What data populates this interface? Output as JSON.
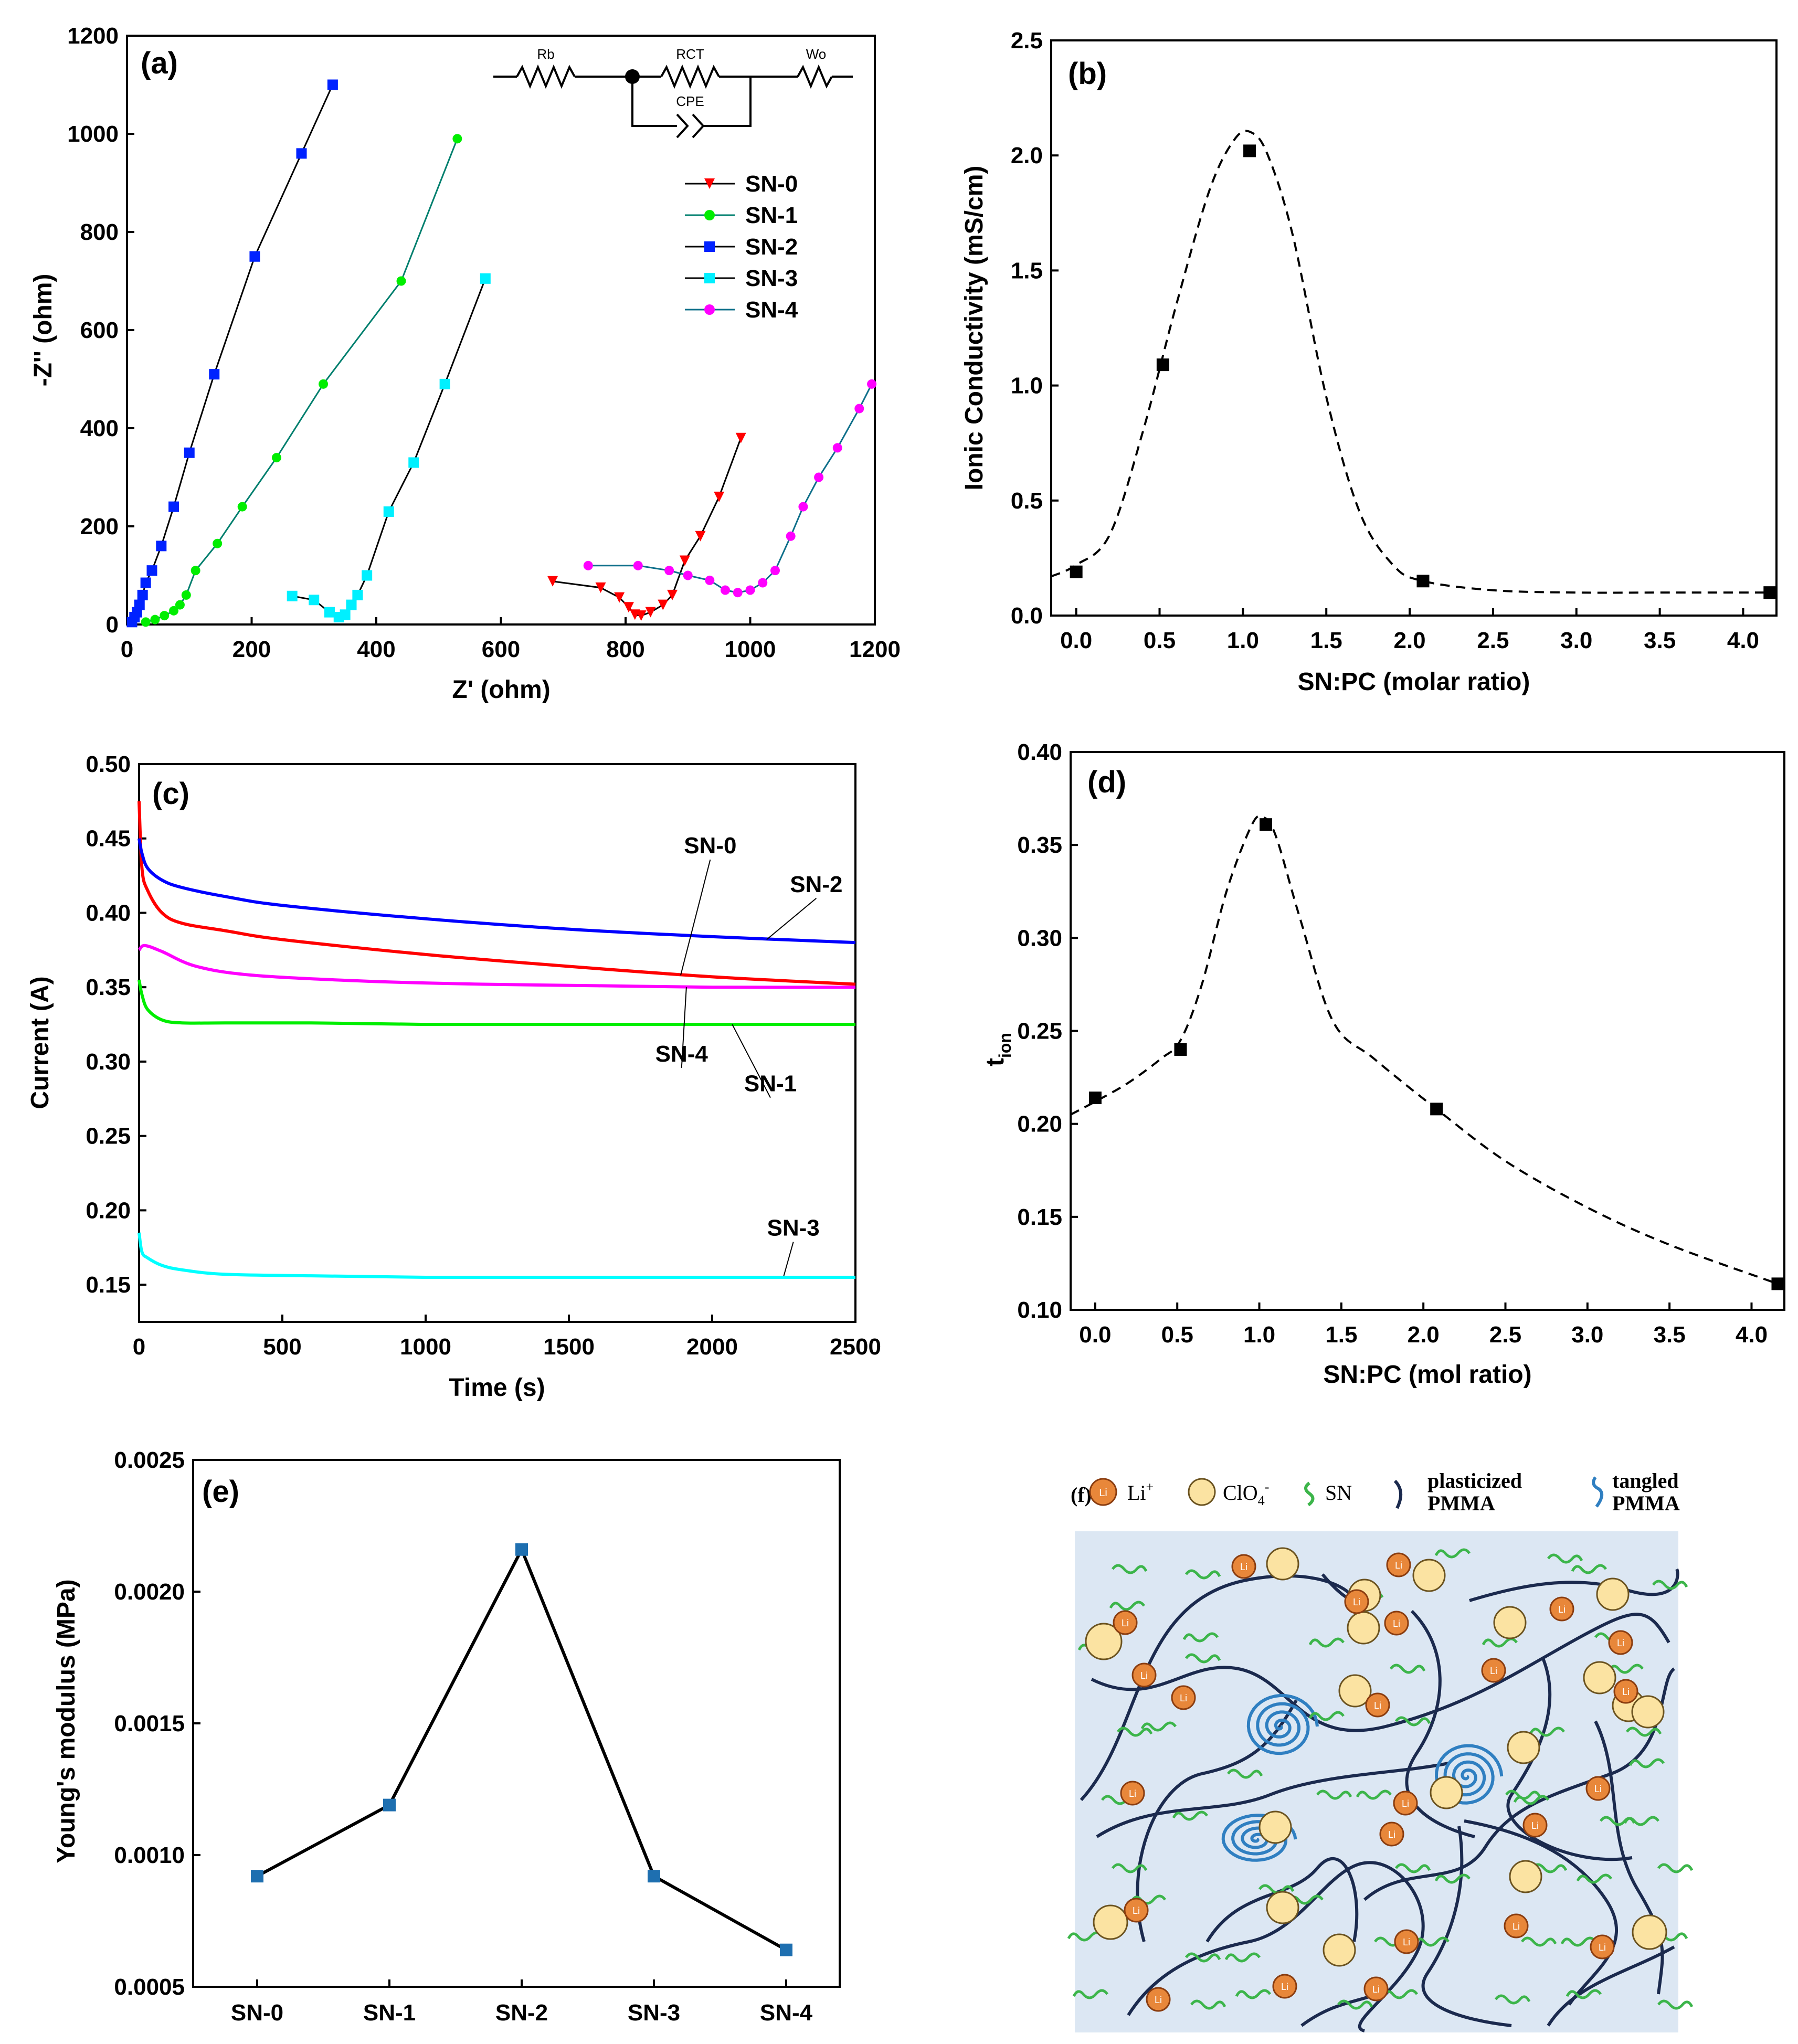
{
  "chart_data": [
    {
      "id": "a",
      "type": "scatter",
      "panel_label": "(a)",
      "xlabel": "Z' (ohm)",
      "ylabel": "-Z'' (ohm)",
      "xlim": [
        0,
        1200
      ],
      "ylim": [
        0,
        1200
      ],
      "xticks": [
        "0",
        "200",
        "400",
        "600",
        "800",
        "1000",
        "1200"
      ],
      "yticks": [
        "0",
        "200",
        "400",
        "600",
        "800",
        "1000",
        "1200"
      ],
      "circuit_labels": {
        "rb": "Rb",
        "rct": "RCT",
        "wo": "Wo",
        "cpe": "CPE"
      },
      "series": [
        {
          "name": "SN-0",
          "color": "#ff0000",
          "marker": "triangle-down",
          "x": [
            683,
            760,
            790,
            805,
            815,
            825,
            840,
            860,
            875,
            895,
            920,
            950,
            985
          ],
          "y": [
            88,
            75,
            55,
            35,
            20,
            18,
            25,
            40,
            60,
            130,
            180,
            260,
            380
          ]
        },
        {
          "name": "SN-1",
          "color": "#00ee00",
          "line": "#007f6e",
          "marker": "circle",
          "x": [
            30,
            45,
            60,
            75,
            85,
            95,
            110,
            145,
            185,
            240,
            315,
            440,
            530
          ],
          "y": [
            5,
            10,
            18,
            28,
            40,
            60,
            110,
            165,
            240,
            340,
            490,
            700,
            990
          ]
        },
        {
          "name": "SN-2",
          "color": "#0022ff",
          "line": "#000000",
          "marker": "square",
          "x": [
            8,
            12,
            16,
            20,
            25,
            30,
            40,
            55,
            75,
            100,
            140,
            205,
            280,
            330
          ],
          "y": [
            5,
            15,
            25,
            40,
            60,
            85,
            110,
            160,
            240,
            350,
            510,
            750,
            960,
            1100
          ]
        },
        {
          "name": "SN-3",
          "color": "#00f0ff",
          "line": "#000000",
          "marker": "square",
          "x": [
            265,
            300,
            325,
            340,
            350,
            360,
            370,
            385,
            420,
            460,
            510,
            575
          ],
          "y": [
            58,
            50,
            25,
            15,
            20,
            40,
            60,
            100,
            230,
            330,
            490,
            705
          ]
        },
        {
          "name": "SN-4",
          "color": "#ff00ff",
          "line": "#0e6f8a",
          "marker": "circle",
          "x": [
            740,
            820,
            870,
            900,
            935,
            960,
            980,
            1000,
            1020,
            1040,
            1065,
            1085,
            1110,
            1140,
            1175,
            1195
          ],
          "y": [
            120,
            120,
            110,
            100,
            90,
            70,
            65,
            70,
            85,
            110,
            180,
            240,
            300,
            360,
            440,
            490
          ]
        }
      ]
    },
    {
      "id": "b",
      "type": "scatter",
      "panel_label": "(b)",
      "xlabel": "SN:PC (molar ratio)",
      "ylabel": "Ionic Conductivity (mS/cm)",
      "xlim": [
        -0.15,
        4.2
      ],
      "ylim": [
        0,
        2.5
      ],
      "xticks": [
        "0.0",
        "0.5",
        "1.0",
        "1.5",
        "2.0",
        "2.5",
        "3.0",
        "3.5",
        "4.0"
      ],
      "yticks": [
        "0.0",
        "0.5",
        "1.0",
        "1.5",
        "2.0",
        "2.5"
      ],
      "points": {
        "x": [
          0.0,
          0.52,
          1.04,
          2.08,
          4.16
        ],
        "y": [
          0.19,
          1.09,
          2.02,
          0.15,
          0.1
        ]
      },
      "fit": {
        "x": [
          -0.15,
          0.0,
          0.2,
          0.4,
          0.6,
          0.8,
          0.95,
          1.05,
          1.15,
          1.3,
          1.5,
          1.7,
          1.9,
          2.08,
          2.5,
          3.0,
          3.5,
          4.16
        ],
        "y": [
          0.17,
          0.22,
          0.35,
          0.8,
          1.35,
          1.85,
          2.07,
          2.1,
          2.0,
          1.65,
          0.95,
          0.45,
          0.22,
          0.15,
          0.11,
          0.1,
          0.1,
          0.1
        ]
      }
    },
    {
      "id": "c",
      "type": "line",
      "panel_label": "(c)",
      "xlabel": "Time (s)",
      "ylabel": "Current (A)",
      "xlim": [
        0,
        2500
      ],
      "ylim": [
        0.125,
        0.5
      ],
      "xticks": [
        "0",
        "500",
        "1000",
        "1500",
        "2000",
        "2500"
      ],
      "yticks": [
        "0.15",
        "0.20",
        "0.25",
        "0.30",
        "0.35",
        "0.40",
        "0.45",
        "0.50"
      ],
      "series": [
        {
          "name": "SN-0",
          "color": "#ff0000",
          "x": [
            0,
            10,
            30,
            80,
            150,
            300,
            500,
            1000,
            1500,
            2000,
            2500
          ],
          "y": [
            0.475,
            0.43,
            0.415,
            0.4,
            0.393,
            0.388,
            0.382,
            0.372,
            0.364,
            0.357,
            0.352
          ]
        },
        {
          "name": "SN-2",
          "color": "#0000ff",
          "x": [
            0,
            10,
            30,
            80,
            150,
            300,
            500,
            1000,
            1500,
            2000,
            2500
          ],
          "y": [
            0.45,
            0.44,
            0.43,
            0.422,
            0.417,
            0.411,
            0.405,
            0.396,
            0.389,
            0.384,
            0.38
          ]
        },
        {
          "name": "SN-4",
          "color": "#ff00ff",
          "x": [
            0,
            20,
            80,
            200,
            400,
            800,
            1200,
            1600,
            2000,
            2500
          ],
          "y": [
            0.375,
            0.378,
            0.374,
            0.364,
            0.358,
            0.354,
            0.352,
            0.351,
            0.35,
            0.35
          ]
        },
        {
          "name": "SN-1",
          "color": "#00ee00",
          "x": [
            0,
            10,
            30,
            80,
            150,
            300,
            600,
            1000,
            1500,
            2000,
            2500
          ],
          "y": [
            0.355,
            0.345,
            0.335,
            0.328,
            0.326,
            0.326,
            0.326,
            0.325,
            0.325,
            0.325,
            0.325
          ]
        },
        {
          "name": "SN-3",
          "color": "#00ffff",
          "x": [
            0,
            10,
            30,
            80,
            150,
            300,
            600,
            1000,
            1500,
            2000,
            2500
          ],
          "y": [
            0.185,
            0.172,
            0.168,
            0.163,
            0.16,
            0.157,
            0.156,
            0.155,
            0.155,
            0.155,
            0.155
          ]
        }
      ],
      "annotations": [
        {
          "text": "SN-0",
          "label_x": 1920,
          "label_y": 0.44,
          "to_x": 1890,
          "to_y": 0.358
        },
        {
          "text": "SN-2",
          "label_x": 2290,
          "label_y": 0.414,
          "to_x": 2190,
          "to_y": 0.382
        },
        {
          "text": "SN-4",
          "label_x": 1820,
          "label_y": 0.3,
          "to_x": 1910,
          "to_y": 0.35
        },
        {
          "text": "SN-1",
          "label_x": 2130,
          "label_y": 0.28,
          "to_x": 2070,
          "to_y": 0.325
        },
        {
          "text": "SN-3",
          "label_x": 2210,
          "label_y": 0.183,
          "to_x": 2250,
          "to_y": 0.156
        }
      ]
    },
    {
      "id": "d",
      "type": "scatter",
      "panel_label": "(d)",
      "xlabel": "SN:PC (mol ratio)",
      "ylabel": "t",
      "ylabel_sub": "ion",
      "xlim": [
        -0.15,
        4.2
      ],
      "ylim": [
        0.1,
        0.4
      ],
      "xticks": [
        "0.0",
        "0.5",
        "1.0",
        "1.5",
        "2.0",
        "2.5",
        "3.0",
        "3.5",
        "4.0"
      ],
      "yticks": [
        "0.10",
        "0.15",
        "0.20",
        "0.25",
        "0.30",
        "0.35",
        "0.40"
      ],
      "points": {
        "x": [
          0.0,
          0.52,
          1.04,
          2.08,
          4.16
        ],
        "y": [
          0.214,
          0.24,
          0.361,
          0.208,
          0.114
        ]
      },
      "fit": {
        "x": [
          -0.15,
          0.0,
          0.2,
          0.4,
          0.52,
          0.65,
          0.8,
          0.95,
          1.02,
          1.1,
          1.25,
          1.45,
          1.7,
          2.08,
          2.5,
          3.0,
          3.5,
          4.16
        ],
        "y": [
          0.205,
          0.212,
          0.222,
          0.235,
          0.245,
          0.275,
          0.325,
          0.36,
          0.365,
          0.355,
          0.31,
          0.255,
          0.235,
          0.208,
          0.18,
          0.155,
          0.135,
          0.114
        ]
      }
    },
    {
      "id": "e",
      "type": "line",
      "panel_label": "(e)",
      "ylabel": "Young's modulus (MPa)",
      "categories": [
        "SN-0",
        "SN-1",
        "SN-2",
        "SN-3",
        "SN-4"
      ],
      "values": [
        0.00092,
        0.00119,
        0.00216,
        0.00092,
        0.00064
      ],
      "ylim": [
        0.0005,
        0.0025
      ],
      "yticks": [
        "0.0005",
        "0.0010",
        "0.0015",
        "0.0020",
        "0.0025"
      ],
      "color": "#1e6fb0"
    }
  ],
  "schematic": {
    "panel_label": "(f)",
    "legend": {
      "li": "Li",
      "li_sup": "+",
      "clo4": "ClO",
      "clo4_sub": "4",
      "clo4_sup": "-",
      "sn": "SN",
      "plasticized": [
        "plasticized",
        "PMMA"
      ],
      "tangled": [
        "tangled",
        "PMMA"
      ]
    },
    "li_badge": "Li",
    "colors": {
      "background": "#dce7f3",
      "li": "#e8873a",
      "clo4": "#fbe3a2",
      "sn": "#3cb54a",
      "pmma": "#1b2a4e",
      "tangled": "#2f7fc1"
    }
  }
}
